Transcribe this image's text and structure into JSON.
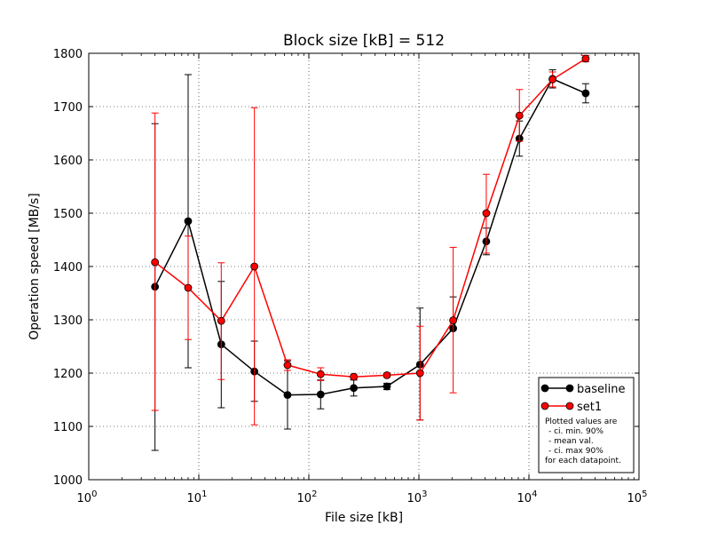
{
  "chart_data": {
    "type": "line",
    "title": "Block size [kB] = 512",
    "xlabel": "File size [kB]",
    "ylabel": "Operation speed [MB/s]",
    "x_scale": "log",
    "xlim": [
      1,
      100000
    ],
    "ylim": [
      1000,
      1800
    ],
    "grid": true,
    "legend_position": "lower right",
    "x_tick_labels": [
      {
        "value": 1,
        "base": "10",
        "exp": "0"
      },
      {
        "value": 10,
        "base": "10",
        "exp": "1"
      },
      {
        "value": 100,
        "base": "10",
        "exp": "2"
      },
      {
        "value": 1000,
        "base": "10",
        "exp": "3"
      },
      {
        "value": 10000,
        "base": "10",
        "exp": "4"
      },
      {
        "value": 100000,
        "base": "10",
        "exp": "5"
      }
    ],
    "y_ticks": [
      1000,
      1100,
      1200,
      1300,
      1400,
      1500,
      1600,
      1700,
      1800
    ],
    "x": [
      4,
      8,
      16,
      32,
      64,
      128,
      256,
      512,
      1024,
      2048,
      4096,
      8192,
      16384,
      32768
    ],
    "series": [
      {
        "name": "baseline",
        "color": "#000000",
        "values": [
          1362,
          1485,
          1254,
          1203,
          1159,
          1160,
          1172,
          1175,
          1216,
          1284,
          1447,
          1640,
          1752,
          1725
        ],
        "ci_min": [
          1055,
          1210,
          1135,
          1147,
          1095,
          1133,
          1157,
          1169,
          1112,
          1283,
          1422,
          1607,
          1735,
          1707
        ],
        "ci_max": [
          1668,
          1760,
          1372,
          1260,
          1223,
          1187,
          1187,
          1181,
          1322,
          1343,
          1472,
          1673,
          1769,
          1743
        ]
      },
      {
        "name": "set1",
        "color": "#ff0000",
        "values": [
          1408,
          1360,
          1298,
          1400,
          1215,
          1198,
          1193,
          1196,
          1200,
          1299,
          1500,
          1683,
          1751,
          1790
        ],
        "ci_min": [
          1130,
          1263,
          1188,
          1103,
          1205,
          1186,
          1188,
          1192,
          1112,
          1163,
          1425,
          1635,
          1737,
          1784
        ],
        "ci_max": [
          1688,
          1457,
          1407,
          1698,
          1225,
          1210,
          1198,
          1200,
          1288,
          1436,
          1573,
          1732,
          1765,
          1796
        ]
      }
    ],
    "legend_note": [
      "Plotted values are",
      "- ci. min. 90%",
      "- mean val.",
      "- ci. max 90%",
      "for each datapoint."
    ]
  }
}
